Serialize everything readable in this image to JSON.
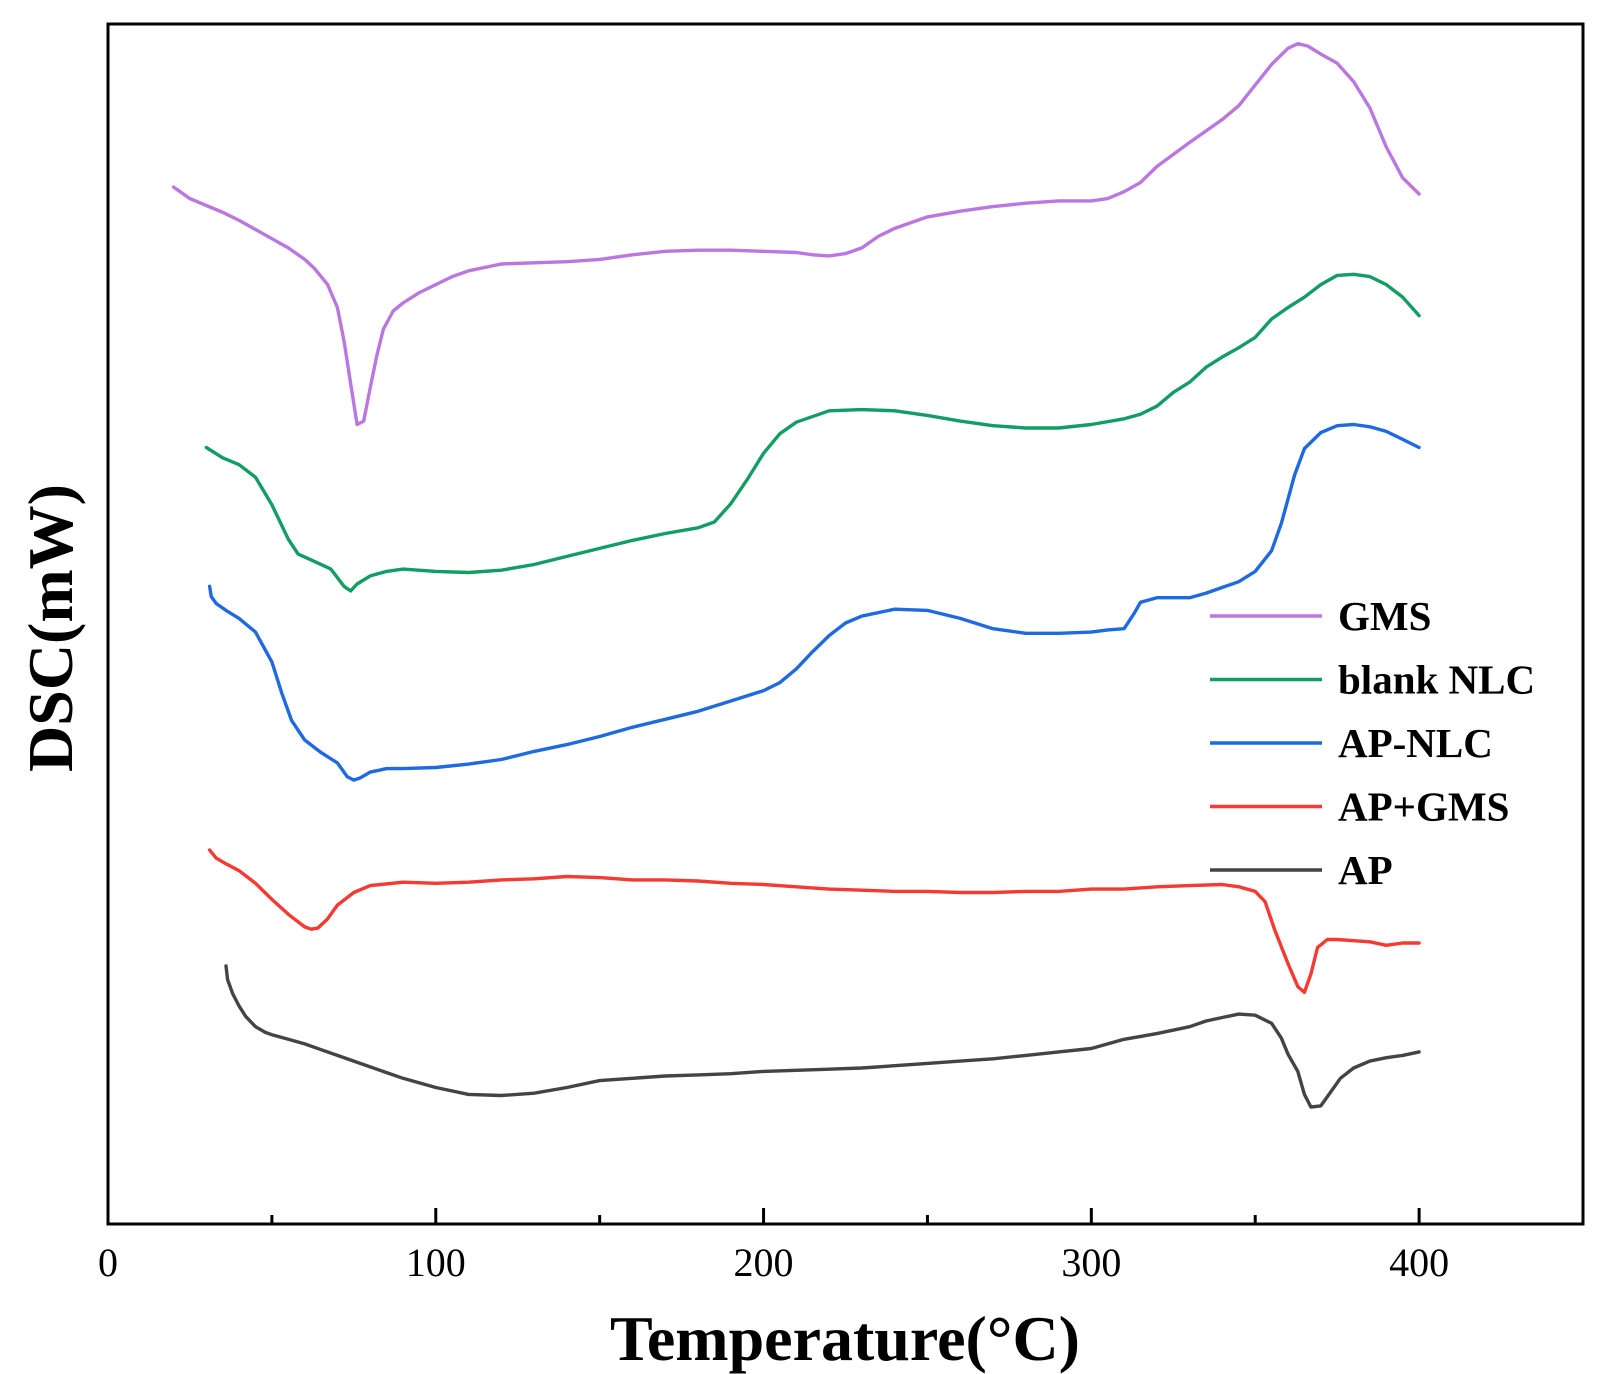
{
  "chart_data": {
    "type": "line",
    "title": "",
    "xlabel": "Temperature(°C)",
    "ylabel": "DSC(mW)",
    "xlim": [
      0,
      450
    ],
    "ylim": [
      0,
      100
    ],
    "xticks": [
      0,
      100,
      200,
      300,
      400
    ],
    "xminor_ticks": [
      50,
      150,
      250,
      350
    ],
    "y_ticks_shown": false,
    "grid": false,
    "legend_position": "right",
    "series": [
      {
        "name": "GMS",
        "color": "#bb77e0",
        "x": [
          20,
          22,
          25,
          30,
          35,
          40,
          45,
          50,
          55,
          60,
          63,
          67,
          70,
          72,
          74,
          76,
          78,
          80,
          82,
          84,
          87,
          90,
          95,
          100,
          105,
          110,
          120,
          130,
          140,
          150,
          160,
          170,
          180,
          190,
          200,
          210,
          215,
          220,
          225,
          230,
          235,
          240,
          250,
          260,
          270,
          280,
          290,
          300,
          305,
          310,
          315,
          320,
          330,
          340,
          345,
          350,
          355,
          360,
          363,
          366,
          370,
          375,
          380,
          385,
          390,
          395,
          400
        ],
        "y": [
          87,
          86.6,
          86,
          85.4,
          84.8,
          84.1,
          83.3,
          82.5,
          81.7,
          80.7,
          79.9,
          78.5,
          76.5,
          73.6,
          69.9,
          66.3,
          66.6,
          69.5,
          72.3,
          74.6,
          76.2,
          76.9,
          77.8,
          78.5,
          79.2,
          79.7,
          80.3,
          80.4,
          80.5,
          80.7,
          81.1,
          81.4,
          81.5,
          81.5,
          81.4,
          81.3,
          81.1,
          81,
          81.2,
          81.7,
          82.7,
          83.4,
          84.4,
          84.9,
          85.3,
          85.6,
          85.8,
          85.8,
          86,
          86.6,
          87.4,
          88.8,
          90.9,
          92.9,
          94.1,
          95.9,
          97.7,
          99.1,
          99.5,
          99.3,
          98.6,
          97.8,
          96.2,
          93.9,
          90.5,
          87.8,
          86.4
        ]
      },
      {
        "name": "blank NLC",
        "color": "#129d63",
        "x": [
          30,
          35,
          40,
          45,
          50,
          55,
          58,
          62,
          68,
          72,
          74,
          76,
          80,
          85,
          90,
          100,
          110,
          120,
          130,
          140,
          150,
          160,
          170,
          180,
          185,
          190,
          195,
          200,
          205,
          210,
          220,
          230,
          240,
          250,
          260,
          270,
          280,
          290,
          300,
          310,
          315,
          320,
          325,
          330,
          335,
          340,
          345,
          350,
          355,
          360,
          365,
          370,
          375,
          380,
          385,
          390,
          395,
          400
        ],
        "y": [
          64.3,
          63.4,
          62.8,
          61.7,
          59.3,
          56.3,
          55,
          54.5,
          53.7,
          52.2,
          51.8,
          52.4,
          53.1,
          53.5,
          53.7,
          53.5,
          53.4,
          53.6,
          54.1,
          54.8,
          55.5,
          56.2,
          56.8,
          57.3,
          57.8,
          59.4,
          61.5,
          63.8,
          65.5,
          66.5,
          67.5,
          67.6,
          67.5,
          67.1,
          66.6,
          66.2,
          66,
          66,
          66.3,
          66.8,
          67.2,
          67.9,
          69.1,
          70,
          71.3,
          72.2,
          73,
          73.9,
          75.5,
          76.5,
          77.4,
          78.5,
          79.3,
          79.4,
          79.2,
          78.5,
          77.4,
          75.8
        ]
      },
      {
        "name": "AP-NLC",
        "color": "#1f6ae0",
        "x": [
          31,
          31.5,
          33,
          36,
          40,
          45,
          50,
          53,
          56,
          60,
          65,
          70,
          73,
          75,
          77,
          80,
          85,
          90,
          100,
          110,
          120,
          130,
          140,
          150,
          160,
          170,
          180,
          190,
          200,
          205,
          210,
          215,
          220,
          225,
          230,
          240,
          250,
          260,
          270,
          280,
          290,
          300,
          305,
          310,
          313,
          315,
          320,
          325,
          330,
          335,
          340,
          345,
          350,
          355,
          358,
          362,
          365,
          370,
          375,
          380,
          385,
          390,
          395,
          400
        ],
        "y": [
          52.2,
          51.3,
          50.7,
          50.1,
          49.4,
          48.2,
          45.6,
          42.9,
          40.5,
          38.8,
          37.7,
          36.8,
          35.6,
          35.3,
          35.5,
          36,
          36.3,
          36.3,
          36.4,
          36.7,
          37.1,
          37.8,
          38.4,
          39.1,
          39.9,
          40.6,
          41.3,
          42.2,
          43.1,
          43.8,
          45,
          46.5,
          47.9,
          49,
          49.6,
          50.2,
          50.1,
          49.4,
          48.5,
          48.1,
          48.1,
          48.2,
          48.4,
          48.5,
          49.8,
          50.8,
          51.2,
          51.2,
          51.2,
          51.6,
          52.1,
          52.6,
          53.5,
          55.3,
          57.7,
          61.9,
          64.2,
          65.6,
          66.2,
          66.3,
          66.1,
          65.7,
          65,
          64.3
        ]
      },
      {
        "name": "AP+GMS",
        "color": "#f43a32",
        "x": [
          31,
          33,
          36,
          40,
          45,
          50,
          55,
          60,
          62,
          64,
          67,
          70,
          75,
          80,
          90,
          100,
          110,
          120,
          130,
          140,
          150,
          160,
          170,
          180,
          190,
          200,
          210,
          220,
          230,
          240,
          250,
          260,
          270,
          280,
          290,
          300,
          310,
          320,
          330,
          340,
          345,
          350,
          353,
          356,
          360,
          363,
          365,
          367,
          369,
          372,
          375,
          380,
          385,
          390,
          395,
          400
        ],
        "y": [
          29.2,
          28.5,
          28,
          27.4,
          26.3,
          24.9,
          23.6,
          22.5,
          22.3,
          22.4,
          23.2,
          24.4,
          25.5,
          26.1,
          26.4,
          26.3,
          26.4,
          26.6,
          26.7,
          26.9,
          26.8,
          26.6,
          26.6,
          26.5,
          26.3,
          26.2,
          26,
          25.8,
          25.7,
          25.6,
          25.6,
          25.5,
          25.5,
          25.6,
          25.6,
          25.8,
          25.8,
          26,
          26.1,
          26.2,
          26,
          25.6,
          24.7,
          22.2,
          19.3,
          17.3,
          16.8,
          18.4,
          20.7,
          21.4,
          21.4,
          21.3,
          21.2,
          20.9,
          21.1,
          21.1
        ]
      },
      {
        "name": "AP",
        "color": "#444444",
        "x": [
          36,
          36.5,
          38,
          40,
          42,
          45,
          48,
          50,
          55,
          60,
          65,
          70,
          75,
          80,
          85,
          90,
          100,
          110,
          120,
          130,
          140,
          150,
          160,
          170,
          180,
          190,
          200,
          210,
          220,
          230,
          240,
          250,
          260,
          270,
          280,
          290,
          300,
          310,
          320,
          330,
          335,
          340,
          345,
          350,
          355,
          358,
          360,
          363,
          365,
          367,
          370,
          373,
          376,
          380,
          385,
          390,
          395,
          400
        ],
        "y": [
          19.1,
          17.9,
          16.7,
          15.6,
          14.7,
          13.8,
          13.3,
          13.1,
          12.7,
          12.3,
          11.8,
          11.3,
          10.8,
          10.3,
          9.8,
          9.3,
          8.5,
          7.9,
          7.8,
          8,
          8.5,
          9.1,
          9.3,
          9.5,
          9.6,
          9.7,
          9.9,
          10,
          10.1,
          10.2,
          10.4,
          10.6,
          10.8,
          11,
          11.3,
          11.6,
          11.9,
          12.7,
          13.2,
          13.8,
          14.3,
          14.6,
          14.9,
          14.8,
          14.1,
          12.8,
          11.4,
          9.9,
          7.9,
          6.8,
          6.9,
          8.1,
          9.3,
          10.2,
          10.8,
          11.1,
          11.3,
          11.6
        ]
      }
    ]
  }
}
